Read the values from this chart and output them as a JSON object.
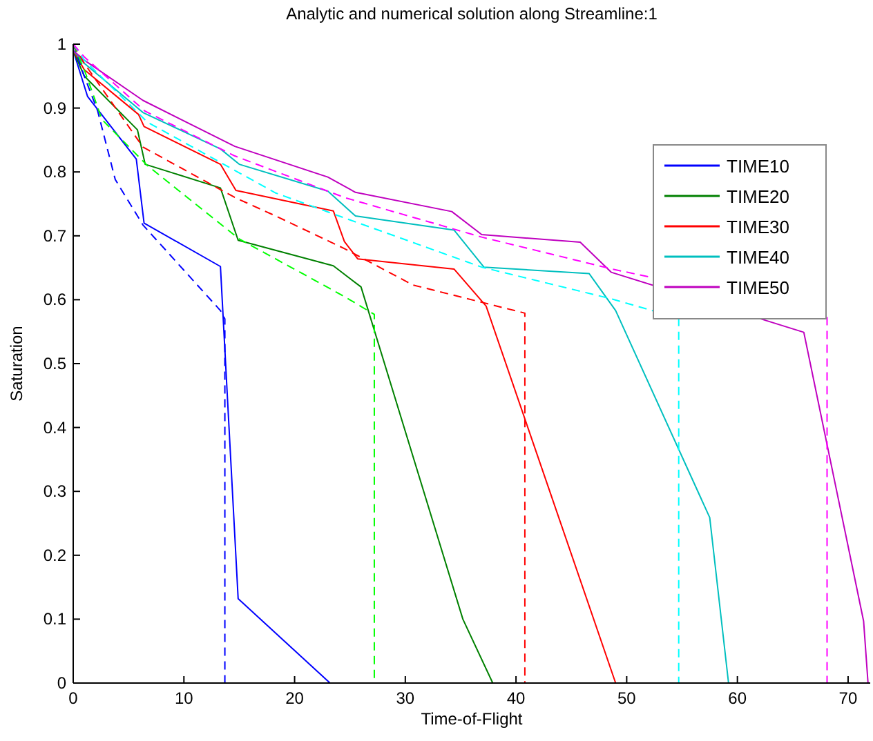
{
  "chart_data": {
    "type": "line",
    "title": "Analytic and numerical solution along Streamline:1",
    "xlabel": "Time-of-Flight",
    "ylabel": "Saturation",
    "xlim": [
      0,
      72
    ],
    "ylim": [
      0,
      1
    ],
    "xticks": [
      0,
      10,
      20,
      30,
      40,
      50,
      60,
      70
    ],
    "yticks": [
      0,
      0.1,
      0.2,
      0.3,
      0.4,
      0.5,
      0.6,
      0.7,
      0.8,
      0.9,
      1
    ],
    "grid": false,
    "legend": "right",
    "marker": "none",
    "series": [
      {
        "name": "TIME10",
        "color": "#0000ff",
        "line_style": "solid",
        "x": [
          0,
          1.3,
          5.7,
          6.4,
          13.3,
          14.9,
          23.2,
          72
        ],
        "values": [
          0.99,
          0.918,
          0.82,
          0.72,
          0.652,
          0.132,
          0,
          0
        ]
      },
      {
        "name": "TIME20",
        "color": "#008000",
        "line_style": "solid",
        "x": [
          0,
          1,
          5.8,
          6.5,
          13.3,
          14.9,
          23.5,
          26,
          35.2,
          37.9,
          72
        ],
        "values": [
          0.99,
          0.95,
          0.866,
          0.812,
          0.775,
          0.693,
          0.653,
          0.62,
          0.1,
          0,
          0
        ]
      },
      {
        "name": "TIME30",
        "color": "#ff0000",
        "line_style": "solid",
        "x": [
          0,
          1,
          5.9,
          6.4,
          13.3,
          14.7,
          23.5,
          24.5,
          25.7,
          34.4,
          37.3,
          49,
          72
        ],
        "values": [
          0.99,
          0.96,
          0.89,
          0.871,
          0.812,
          0.771,
          0.739,
          0.691,
          0.664,
          0.648,
          0.59,
          0,
          0
        ]
      },
      {
        "name": "TIME40",
        "color": "#00bfbf",
        "line_style": "solid",
        "x": [
          0,
          1,
          6.3,
          13.3,
          15,
          23,
          25.5,
          34.4,
          37.1,
          46.6,
          49,
          57.5,
          59.2,
          72
        ],
        "values": [
          0.99,
          0.97,
          0.893,
          0.836,
          0.812,
          0.77,
          0.731,
          0.709,
          0.651,
          0.641,
          0.583,
          0.259,
          0,
          0
        ]
      },
      {
        "name": "TIME50",
        "color": "#bf00bf",
        "line_style": "solid",
        "x": [
          0,
          1,
          6.3,
          14.6,
          23,
          25.5,
          34.2,
          36.9,
          45.8,
          48.6,
          66,
          71.4,
          71.8
        ],
        "values": [
          0.99,
          0.975,
          0.912,
          0.84,
          0.792,
          0.768,
          0.738,
          0.702,
          0.69,
          0.643,
          0.549,
          0.097,
          0
        ]
      },
      {
        "color": "#0000ff",
        "line_style": "dashed",
        "x": [
          0,
          1,
          2.2,
          3.8,
          6.3,
          13.3,
          13.7,
          13.7
        ],
        "values": [
          1,
          0.95,
          0.896,
          0.788,
          0.717,
          0.583,
          0.57,
          0
        ]
      },
      {
        "color": "#00ff00",
        "line_style": "dashed",
        "x": [
          0,
          1,
          2.6,
          6.7,
          15,
          24.5,
          27.2,
          27.2
        ],
        "values": [
          1,
          0.96,
          0.882,
          0.81,
          0.695,
          0.605,
          0.577,
          0
        ]
      },
      {
        "color": "#ff0000",
        "line_style": "dashed",
        "x": [
          0,
          1,
          6.3,
          14.6,
          18.3,
          24.5,
          30.7,
          40.8,
          40.8
        ],
        "values": [
          1,
          0.97,
          0.839,
          0.76,
          0.731,
          0.68,
          0.623,
          0.579,
          0
        ]
      },
      {
        "color": "#00ffff",
        "line_style": "dashed",
        "x": [
          0,
          1,
          6.7,
          18.3,
          24.5,
          36.9,
          48.7,
          54.7,
          54.7
        ],
        "values": [
          1,
          0.975,
          0.878,
          0.767,
          0.728,
          0.651,
          0.601,
          0.571,
          0
        ]
      },
      {
        "color": "#ff00ff",
        "line_style": "dashed",
        "x": [
          0,
          1,
          6.5,
          14.6,
          24.5,
          36.9,
          48.7,
          68.1,
          68.1
        ],
        "values": [
          1,
          0.98,
          0.895,
          0.825,
          0.76,
          0.698,
          0.648,
          0.576,
          0
        ]
      }
    ]
  }
}
